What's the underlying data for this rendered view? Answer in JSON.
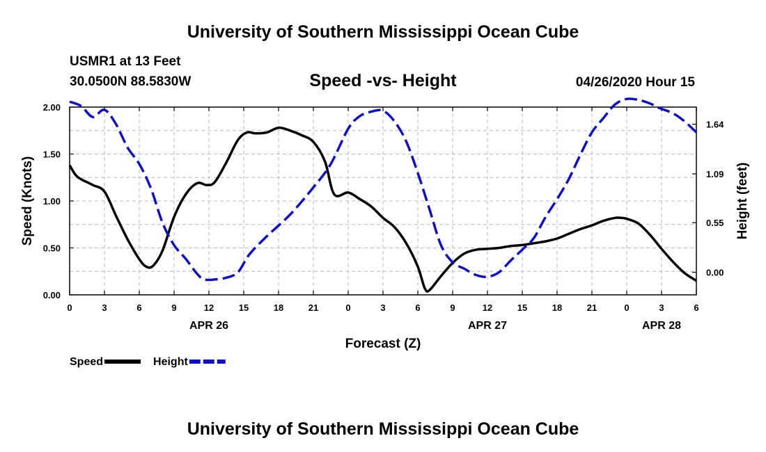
{
  "header": {
    "title": "University of Southern Mississippi Ocean Cube",
    "station": "USMR1 at 13 Feet",
    "coords": "30.0500N 88.5830W",
    "timestamp": "04/26/2020 Hour 15"
  },
  "footer": {
    "title": "University of Southern Mississippi Ocean Cube"
  },
  "chart_data": {
    "type": "line",
    "title": "Speed -vs- Height",
    "xlabel": "Forecast (Z)",
    "ylabel_left": "Speed (Knots)",
    "ylabel_right": "Height (feet)",
    "x_range_hours": [
      0,
      54
    ],
    "y_left_range": [
      0,
      2
    ],
    "y_right_range": [
      -0.25,
      1.83
    ],
    "x_ticks": [
      {
        "h": 0,
        "label": "0"
      },
      {
        "h": 3,
        "label": "3"
      },
      {
        "h": 6,
        "label": "6"
      },
      {
        "h": 9,
        "label": "9"
      },
      {
        "h": 12,
        "label": "12"
      },
      {
        "h": 15,
        "label": "15"
      },
      {
        "h": 18,
        "label": "18"
      },
      {
        "h": 21,
        "label": "21"
      },
      {
        "h": 24,
        "label": "0"
      },
      {
        "h": 27,
        "label": "3"
      },
      {
        "h": 30,
        "label": "6"
      },
      {
        "h": 33,
        "label": "9"
      },
      {
        "h": 36,
        "label": "12"
      },
      {
        "h": 39,
        "label": "15"
      },
      {
        "h": 42,
        "label": "18"
      },
      {
        "h": 45,
        "label": "21"
      },
      {
        "h": 48,
        "label": "0"
      },
      {
        "h": 51,
        "label": "3"
      },
      {
        "h": 54,
        "label": "6"
      }
    ],
    "y_left_ticks": [
      {
        "v": 0.0,
        "label": "0.00"
      },
      {
        "v": 0.5,
        "label": "0.50"
      },
      {
        "v": 1.0,
        "label": "1.00"
      },
      {
        "v": 1.5,
        "label": "1.50"
      },
      {
        "v": 2.0,
        "label": "2.00"
      }
    ],
    "y_right_ticks": [
      {
        "v": 0.0,
        "label": "0.00"
      },
      {
        "v": 0.55,
        "label": "0.55"
      },
      {
        "v": 1.09,
        "label": "1.09"
      },
      {
        "v": 1.64,
        "label": "1.64"
      }
    ],
    "date_labels": [
      {
        "h": 12,
        "label": "APR 26"
      },
      {
        "h": 36,
        "label": "APR 27"
      },
      {
        "h": 51,
        "label": "APR 28"
      }
    ],
    "series": [
      {
        "name": "Speed",
        "axis": "left",
        "color": "#000000",
        "dash": "solid",
        "x": [
          0,
          0.5,
          1,
          2,
          3,
          4,
          5,
          6,
          6.6,
          7.2,
          8,
          9,
          10,
          11,
          11.8,
          12.5,
          13.5,
          14.5,
          15.3,
          16,
          17,
          18,
          19,
          20,
          21,
          22,
          22.8,
          24,
          25,
          26,
          27,
          28,
          29,
          30,
          30.6,
          31,
          32,
          33,
          34,
          35,
          36,
          37,
          38,
          39,
          40,
          41,
          42,
          43,
          44,
          45,
          46,
          47,
          47.5,
          48,
          49,
          50,
          51,
          52,
          53,
          54
        ],
        "y": [
          1.38,
          1.28,
          1.23,
          1.17,
          1.1,
          0.84,
          0.59,
          0.38,
          0.3,
          0.31,
          0.47,
          0.83,
          1.07,
          1.19,
          1.17,
          1.2,
          1.41,
          1.65,
          1.73,
          1.72,
          1.73,
          1.78,
          1.75,
          1.7,
          1.63,
          1.42,
          1.07,
          1.09,
          1.02,
          0.94,
          0.82,
          0.72,
          0.55,
          0.3,
          0.07,
          0.05,
          0.2,
          0.34,
          0.44,
          0.48,
          0.49,
          0.5,
          0.52,
          0.53,
          0.55,
          0.57,
          0.6,
          0.65,
          0.7,
          0.74,
          0.79,
          0.82,
          0.82,
          0.81,
          0.76,
          0.64,
          0.49,
          0.35,
          0.23,
          0.15
        ]
      },
      {
        "name": "Height",
        "axis": "right",
        "color": "#1010cc",
        "dash": "dashed",
        "x": [
          0,
          1,
          2,
          3,
          4,
          5,
          6,
          7,
          8,
          9,
          10,
          11,
          11.6,
          12.5,
          13.5,
          14.5,
          15.5,
          17,
          19,
          21,
          22.5,
          24,
          25,
          26,
          27,
          28,
          29,
          30,
          31,
          32,
          33,
          34,
          35,
          36,
          37,
          38,
          39,
          40,
          41,
          42,
          43,
          44,
          45,
          46,
          47,
          48,
          49,
          50,
          50.8,
          52,
          53,
          54
        ],
        "y": [
          1.89,
          1.84,
          1.72,
          1.8,
          1.64,
          1.38,
          1.2,
          0.93,
          0.55,
          0.3,
          0.15,
          -0.02,
          -0.08,
          -0.08,
          -0.06,
          0.0,
          0.2,
          0.4,
          0.64,
          0.94,
          1.2,
          1.59,
          1.73,
          1.78,
          1.79,
          1.67,
          1.45,
          1.1,
          0.7,
          0.3,
          0.11,
          0.04,
          -0.03,
          -0.05,
          0.0,
          0.13,
          0.25,
          0.38,
          0.61,
          0.81,
          1.03,
          1.3,
          1.55,
          1.71,
          1.86,
          1.92,
          1.91,
          1.87,
          1.82,
          1.76,
          1.67,
          1.55
        ]
      }
    ],
    "legend": [
      {
        "label": "Speed",
        "color": "#000000",
        "dash": "solid"
      },
      {
        "label": "Height",
        "color": "#1010cc",
        "dash": "dashed"
      }
    ]
  }
}
